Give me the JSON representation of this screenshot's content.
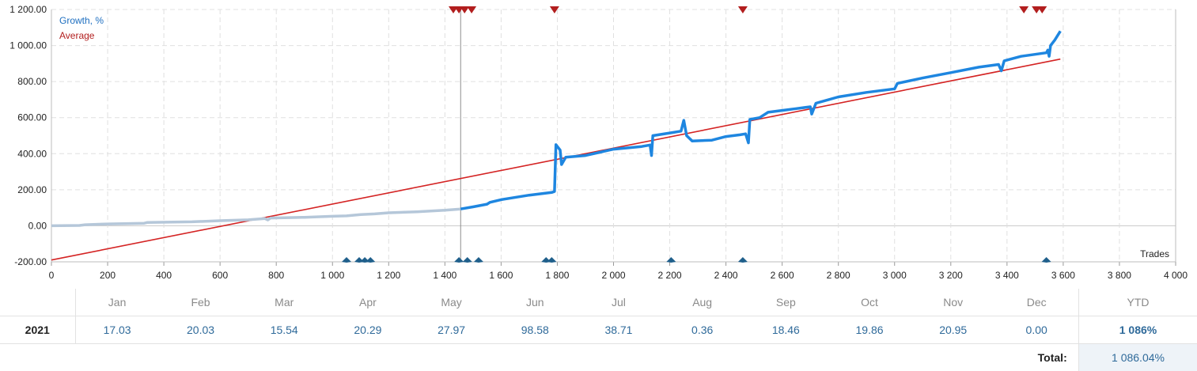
{
  "chart_data": {
    "type": "line",
    "legend": [
      "Growth, %",
      "Average"
    ],
    "legend_position": "top-left",
    "legend_colors": [
      "#1e6fc0",
      "#b21e1e"
    ],
    "xlabel": "Trades",
    "ylabel": "",
    "xlim": [
      0,
      4000
    ],
    "ylim": [
      -200,
      1200
    ],
    "grid": true,
    "x_ticks": [
      "0",
      "200",
      "400",
      "600",
      "800",
      "1 000",
      "1 200",
      "1 400",
      "1 600",
      "1 800",
      "2 000",
      "2 200",
      "2 400",
      "2 600",
      "2 800",
      "3 000",
      "3 200",
      "3 400",
      "3 600",
      "3 800",
      "4 000"
    ],
    "x_tick_values": [
      0,
      200,
      400,
      600,
      800,
      1000,
      1200,
      1400,
      1600,
      1800,
      2000,
      2200,
      2400,
      2600,
      2800,
      3000,
      3200,
      3400,
      3600,
      3800,
      4000
    ],
    "y_ticks": [
      "-200.00",
      "0.00",
      "200.00",
      "400.00",
      "600.00",
      "800.00",
      "1 000.00",
      "1 200.00"
    ],
    "y_tick_values": [
      -200,
      0,
      200,
      400,
      600,
      800,
      1000,
      1200
    ],
    "marker_line_x": 1456,
    "series": [
      {
        "name": "Growth, %",
        "color_before_marker": "#b5c7d9",
        "color": "#1e86e0",
        "points": [
          [
            0,
            0
          ],
          [
            100,
            2
          ],
          [
            120,
            6
          ],
          [
            200,
            10
          ],
          [
            330,
            14
          ],
          [
            340,
            18
          ],
          [
            500,
            22
          ],
          [
            600,
            28
          ],
          [
            700,
            33
          ],
          [
            760,
            40
          ],
          [
            770,
            32
          ],
          [
            780,
            43
          ],
          [
            900,
            47
          ],
          [
            1000,
            53
          ],
          [
            1050,
            55
          ],
          [
            1100,
            62
          ],
          [
            1150,
            66
          ],
          [
            1200,
            72
          ],
          [
            1300,
            78
          ],
          [
            1400,
            86
          ],
          [
            1456,
            93
          ],
          [
            1500,
            105
          ],
          [
            1550,
            120
          ],
          [
            1560,
            130
          ],
          [
            1600,
            145
          ],
          [
            1700,
            170
          ],
          [
            1780,
            185
          ],
          [
            1790,
            190
          ],
          [
            1795,
            450
          ],
          [
            1810,
            420
          ],
          [
            1815,
            340
          ],
          [
            1830,
            380
          ],
          [
            1900,
            390
          ],
          [
            2000,
            425
          ],
          [
            2100,
            440
          ],
          [
            2130,
            448
          ],
          [
            2135,
            390
          ],
          [
            2140,
            500
          ],
          [
            2200,
            515
          ],
          [
            2240,
            525
          ],
          [
            2250,
            585
          ],
          [
            2260,
            500
          ],
          [
            2280,
            470
          ],
          [
            2350,
            475
          ],
          [
            2400,
            495
          ],
          [
            2450,
            505
          ],
          [
            2470,
            510
          ],
          [
            2480,
            460
          ],
          [
            2485,
            590
          ],
          [
            2520,
            600
          ],
          [
            2550,
            630
          ],
          [
            2600,
            640
          ],
          [
            2650,
            650
          ],
          [
            2700,
            660
          ],
          [
            2705,
            620
          ],
          [
            2720,
            680
          ],
          [
            2800,
            715
          ],
          [
            2900,
            740
          ],
          [
            3000,
            760
          ],
          [
            3010,
            790
          ],
          [
            3100,
            820
          ],
          [
            3200,
            850
          ],
          [
            3300,
            880
          ],
          [
            3370,
            895
          ],
          [
            3380,
            860
          ],
          [
            3390,
            915
          ],
          [
            3450,
            940
          ],
          [
            3540,
            960
          ],
          [
            3545,
            975
          ],
          [
            3550,
            940
          ],
          [
            3555,
            1000
          ],
          [
            3570,
            1030
          ],
          [
            3590,
            1080
          ]
        ]
      },
      {
        "name": "Average",
        "color": "#d42323",
        "points": [
          [
            0,
            -190
          ],
          [
            3590,
            925
          ]
        ]
      }
    ],
    "red_markers_x": [
      1430,
      1450,
      1470,
      1495,
      1790,
      2460,
      3460,
      3505,
      3525
    ],
    "blue_markers_x": [
      1050,
      1095,
      1115,
      1135,
      1450,
      1480,
      1520,
      1760,
      1780,
      2205,
      2460,
      3540
    ]
  },
  "table": {
    "months": [
      "Jan",
      "Feb",
      "Mar",
      "Apr",
      "May",
      "Jun",
      "Jul",
      "Aug",
      "Sep",
      "Oct",
      "Nov",
      "Dec"
    ],
    "ytd_label": "YTD",
    "year": "2021",
    "values": [
      "17.03",
      "20.03",
      "15.54",
      "20.29",
      "27.97",
      "98.58",
      "38.71",
      "0.36",
      "18.46",
      "19.86",
      "20.95",
      "0.00"
    ],
    "ytd_value": "1 086%",
    "total_label": "Total:",
    "total_value": "1 086.04%"
  }
}
